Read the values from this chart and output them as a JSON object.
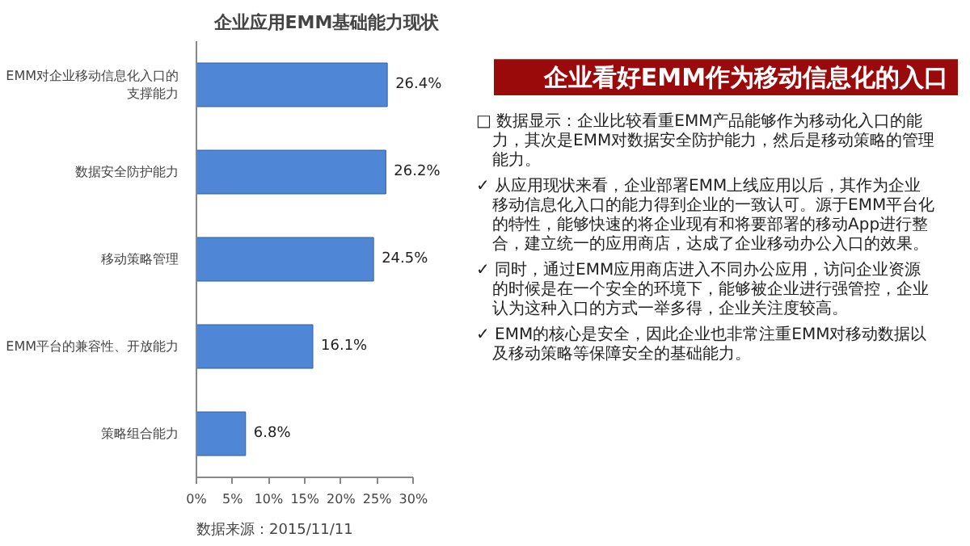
{
  "chart_data": [
    {
      "type": "bar",
      "orientation": "horizontal",
      "title": "企业应用EMM基础能力现状",
      "categories": [
        "EMM对企业移动信息化入口的支撑能力",
        "数据安全防护能力",
        "移动策略管理",
        "EMM平台的兼容性、开放能力",
        "策略组合能力"
      ],
      "values": [
        26.4,
        26.2,
        24.5,
        16.1,
        6.8
      ],
      "value_labels": [
        "26.4%",
        "26.2%",
        "24.5%",
        "16.1%",
        "6.8%"
      ],
      "color": "#4f86d6",
      "xlim": [
        0,
        30
      ],
      "xticks": [
        {
          "value": 0,
          "label": "0%"
        },
        {
          "value": 5,
          "label": "5%"
        },
        {
          "value": 10,
          "label": "10%"
        },
        {
          "value": 15,
          "label": "15%"
        },
        {
          "value": 20,
          "label": "20%"
        },
        {
          "value": 25,
          "label": "25%"
        },
        {
          "value": 30,
          "label": "30%"
        }
      ],
      "grid": false,
      "annotations": [
        "数据来源：2015/11/11"
      ]
    },
    {
      "type": "other",
      "title": "企业看好EMM作为移动信息化的入口",
      "annotations": [
        "□ 数据显示：企业比较看重EMM产品能够作为移动化入口的能力，其次是EMM对数据安全防护能力，然后是移动策略的管理能力。",
        "✓ 从应用现状来看，企业部署EMM上线应用以后，其作为企业移动信息化入口的能力得到企业的一致认可。源于EMM平台化的特性，能够快速的将企业现有和将要部署的移动App进行整合，建立统一的应用商店，达成了企业移动办公入口的效果。",
        "✓ 同时，通过EMM应用商店进入不同办公应用，访问企业资源的时候是在一个安全的环境下，能够被企业进行强管控，企业认为这种入口的方式一举多得，企业关注度较高。",
        "✓ EMM的核心是安全，因此企业也非常注重EMM对移动数据以及移动策略等保障安全的基础能力。"
      ]
    }
  ]
}
